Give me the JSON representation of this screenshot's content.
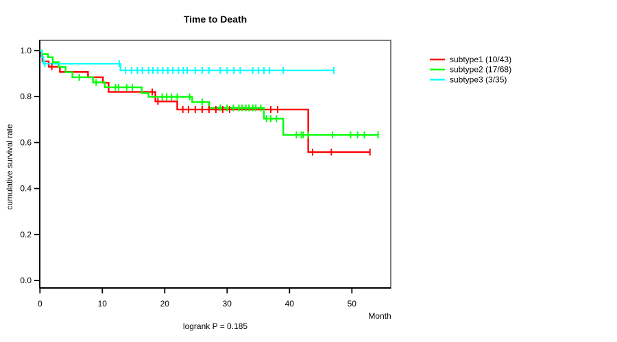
{
  "title": "Time to Death",
  "footer": "logrank P = 0.185",
  "x_axis": {
    "label": "Month",
    "ticks": [
      0,
      10,
      20,
      30,
      40,
      50
    ]
  },
  "y_axis": {
    "label": "cumulative survival rate",
    "ticks": [
      "0.0",
      "0.2",
      "0.4",
      "0.6",
      "0.8",
      "1.0"
    ]
  },
  "legend": {
    "items": [
      {
        "label": "subtype1 (10/43)",
        "color": "#ff0000"
      },
      {
        "label": "subtype2 (17/68)",
        "color": "#00ff00"
      },
      {
        "label": "subtype3 (3/35)",
        "color": "#00ffff"
      }
    ]
  },
  "chart_data": {
    "type": "line",
    "subtype": "kaplan-meier-step",
    "title": "Time to Death",
    "xlabel": "Month",
    "ylabel": "cumulative survival rate",
    "xlim": [
      0,
      56
    ],
    "ylim": [
      0.0,
      1.04
    ],
    "grid": false,
    "legend_position": "right-outside",
    "annotation": "logrank P = 0.185",
    "series": [
      {
        "name": "subtype1 (10/43)",
        "color": "#ff0000",
        "steps": [
          [
            0,
            1.0
          ],
          [
            0.15,
            0.977
          ],
          [
            0.4,
            0.953
          ],
          [
            1.4,
            0.93
          ],
          [
            3.2,
            0.907
          ],
          [
            7.7,
            0.884
          ],
          [
            10.1,
            0.86
          ],
          [
            11.0,
            0.82
          ],
          [
            18.5,
            0.779
          ],
          [
            22.0,
            0.744
          ],
          [
            43.0,
            0.558
          ]
        ],
        "end_month": 52.9,
        "censor_marks": [
          [
            1.9,
            0.93
          ],
          [
            18.0,
            0.82
          ],
          [
            18.9,
            0.779
          ],
          [
            22.9,
            0.744
          ],
          [
            23.8,
            0.744
          ],
          [
            24.9,
            0.744
          ],
          [
            26.0,
            0.744
          ],
          [
            27.1,
            0.744
          ],
          [
            28.2,
            0.744
          ],
          [
            29.3,
            0.744
          ],
          [
            30.4,
            0.744
          ],
          [
            37.0,
            0.744
          ],
          [
            38.1,
            0.744
          ],
          [
            43.7,
            0.558
          ],
          [
            46.7,
            0.558
          ],
          [
            52.9,
            0.558
          ]
        ]
      },
      {
        "name": "subtype2 (17/68)",
        "color": "#00ff00",
        "steps": [
          [
            0,
            1.0
          ],
          [
            0.3,
            0.985
          ],
          [
            1.3,
            0.971
          ],
          [
            2.05,
            0.95
          ],
          [
            3.0,
            0.929
          ],
          [
            4.1,
            0.906
          ],
          [
            5.2,
            0.884
          ],
          [
            8.5,
            0.862
          ],
          [
            10.4,
            0.84
          ],
          [
            16.3,
            0.816
          ],
          [
            17.4,
            0.799
          ],
          [
            24.4,
            0.776
          ],
          [
            27.1,
            0.751
          ],
          [
            35.9,
            0.704
          ],
          [
            39.0,
            0.633
          ]
        ],
        "end_month": 54.2,
        "censor_marks": [
          [
            6.3,
            0.884
          ],
          [
            9.0,
            0.862
          ],
          [
            12.1,
            0.84
          ],
          [
            12.6,
            0.84
          ],
          [
            13.9,
            0.84
          ],
          [
            14.8,
            0.84
          ],
          [
            19.6,
            0.799
          ],
          [
            20.3,
            0.799
          ],
          [
            21.1,
            0.799
          ],
          [
            22.0,
            0.799
          ],
          [
            24.0,
            0.799
          ],
          [
            26.0,
            0.776
          ],
          [
            28.9,
            0.751
          ],
          [
            30.0,
            0.751
          ],
          [
            31.0,
            0.751
          ],
          [
            31.9,
            0.751
          ],
          [
            32.4,
            0.751
          ],
          [
            33.0,
            0.751
          ],
          [
            33.5,
            0.751
          ],
          [
            34.1,
            0.751
          ],
          [
            34.6,
            0.751
          ],
          [
            35.4,
            0.751
          ],
          [
            36.3,
            0.704
          ],
          [
            37.0,
            0.704
          ],
          [
            37.9,
            0.704
          ],
          [
            41.1,
            0.633
          ],
          [
            41.9,
            0.633
          ],
          [
            42.2,
            0.633
          ],
          [
            43.0,
            0.633
          ],
          [
            46.9,
            0.633
          ],
          [
            49.8,
            0.633
          ],
          [
            50.9,
            0.633
          ],
          [
            52.0,
            0.633
          ],
          [
            54.2,
            0.633
          ]
        ]
      },
      {
        "name": "subtype3 (3/35)",
        "color": "#00ffff",
        "steps": [
          [
            0,
            1.0
          ],
          [
            0.3,
            0.971
          ],
          [
            0.55,
            0.943
          ],
          [
            12.9,
            0.914
          ]
        ],
        "end_month": 47.1,
        "censor_marks": [
          [
            0.77,
            0.943
          ],
          [
            12.7,
            0.943
          ],
          [
            13.7,
            0.914
          ],
          [
            14.7,
            0.914
          ],
          [
            15.6,
            0.914
          ],
          [
            16.4,
            0.914
          ],
          [
            17.4,
            0.914
          ],
          [
            18.1,
            0.914
          ],
          [
            18.9,
            0.914
          ],
          [
            19.7,
            0.914
          ],
          [
            20.5,
            0.914
          ],
          [
            21.3,
            0.914
          ],
          [
            22.2,
            0.914
          ],
          [
            23.0,
            0.914
          ],
          [
            23.6,
            0.914
          ],
          [
            24.9,
            0.914
          ],
          [
            26.0,
            0.914
          ],
          [
            27.1,
            0.914
          ],
          [
            28.9,
            0.914
          ],
          [
            30.0,
            0.914
          ],
          [
            31.1,
            0.914
          ],
          [
            32.1,
            0.914
          ],
          [
            34.1,
            0.914
          ],
          [
            35.0,
            0.914
          ],
          [
            35.9,
            0.914
          ],
          [
            36.8,
            0.914
          ],
          [
            39.0,
            0.914
          ],
          [
            47.1,
            0.914
          ]
        ]
      }
    ]
  }
}
